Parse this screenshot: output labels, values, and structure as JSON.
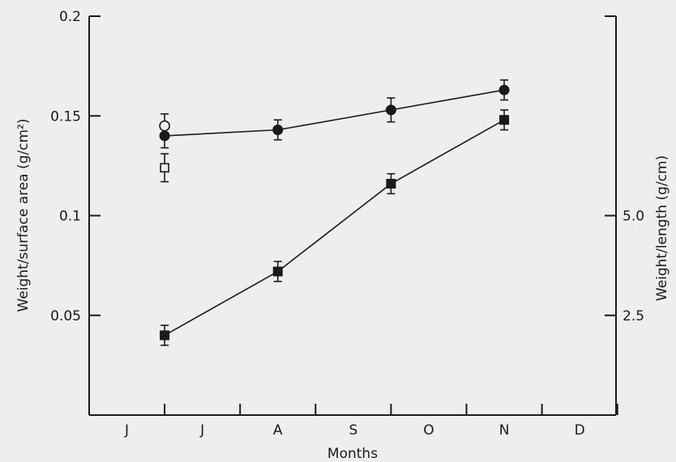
{
  "chart_data": {
    "type": "line",
    "xlabel": "Months",
    "ylabel_left": "Weight/surface area (g/cm²)",
    "ylabel_right": "Weight/length (g/cm)",
    "categories": [
      "J",
      "J",
      "A",
      "S",
      "O",
      "N",
      "D"
    ],
    "ylim_left": [
      0,
      0.2
    ],
    "left_ticks": [
      {
        "value": 0.05,
        "label": "0.05"
      },
      {
        "value": 0.1,
        "label": "0.1"
      },
      {
        "value": 0.15,
        "label": "0.15"
      },
      {
        "value": 0.2,
        "label": "0.2"
      }
    ],
    "ylim_right": [
      0,
      10
    ],
    "right_ticks": [
      {
        "value": 2.5,
        "label": "2.5"
      },
      {
        "value": 5.0,
        "label": "5.0"
      },
      {
        "value": 10,
        "label": ""
      }
    ],
    "grid": false,
    "series": [
      {
        "marker": "filled-circle",
        "axis": "left",
        "x": [
          1,
          2.5,
          4,
          5.5
        ],
        "y": [
          0.14,
          0.143,
          0.153,
          0.163
        ],
        "err": [
          0.006,
          0.005,
          0.006,
          0.005
        ]
      },
      {
        "marker": "filled-square",
        "axis": "left",
        "x": [
          1,
          2.5,
          4,
          5.5
        ],
        "y": [
          0.04,
          0.072,
          0.116,
          0.148
        ],
        "err": [
          0.005,
          0.005,
          0.005,
          0.005
        ]
      },
      {
        "marker": "open-circle",
        "axis": "left",
        "x": [
          1
        ],
        "y": [
          0.145
        ],
        "err": [
          0.006
        ]
      },
      {
        "marker": "open-square",
        "axis": "left",
        "x": [
          1
        ],
        "y": [
          0.124
        ],
        "err": [
          0.007
        ]
      }
    ]
  }
}
